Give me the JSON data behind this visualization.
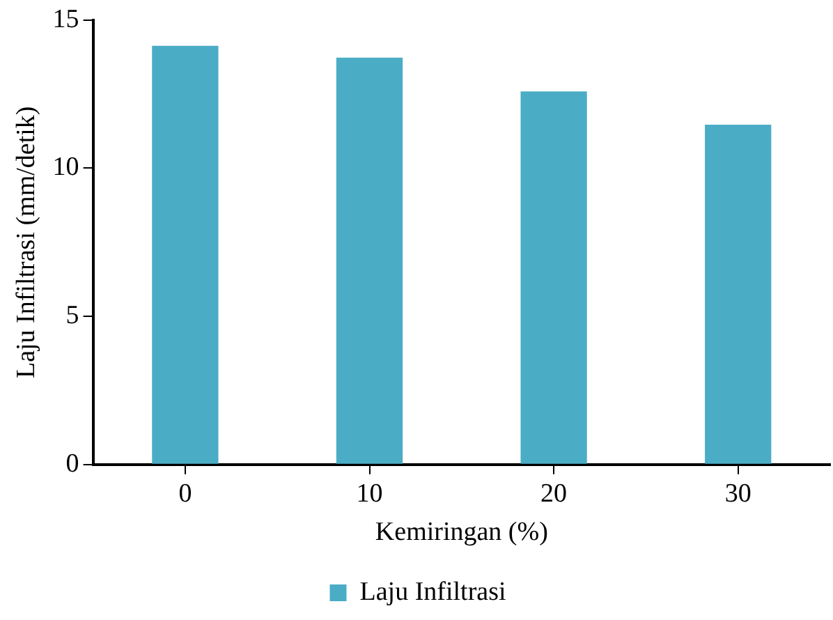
{
  "chart_data": {
    "type": "bar",
    "xlabel": "Kemiringan (%)",
    "ylabel": "Laju Infiltrasi (mm/detik)",
    "categories": [
      "0",
      "10",
      "20",
      "30"
    ],
    "series": [
      {
        "name": "Laju Infiltrasi",
        "color": "#4bacc6",
        "values": [
          14.13,
          13.73,
          12.59,
          11.47
        ]
      }
    ],
    "ylim": [
      0,
      15
    ],
    "yticks": [
      0,
      5,
      10,
      15
    ],
    "grid": false,
    "legend": "bottom"
  }
}
